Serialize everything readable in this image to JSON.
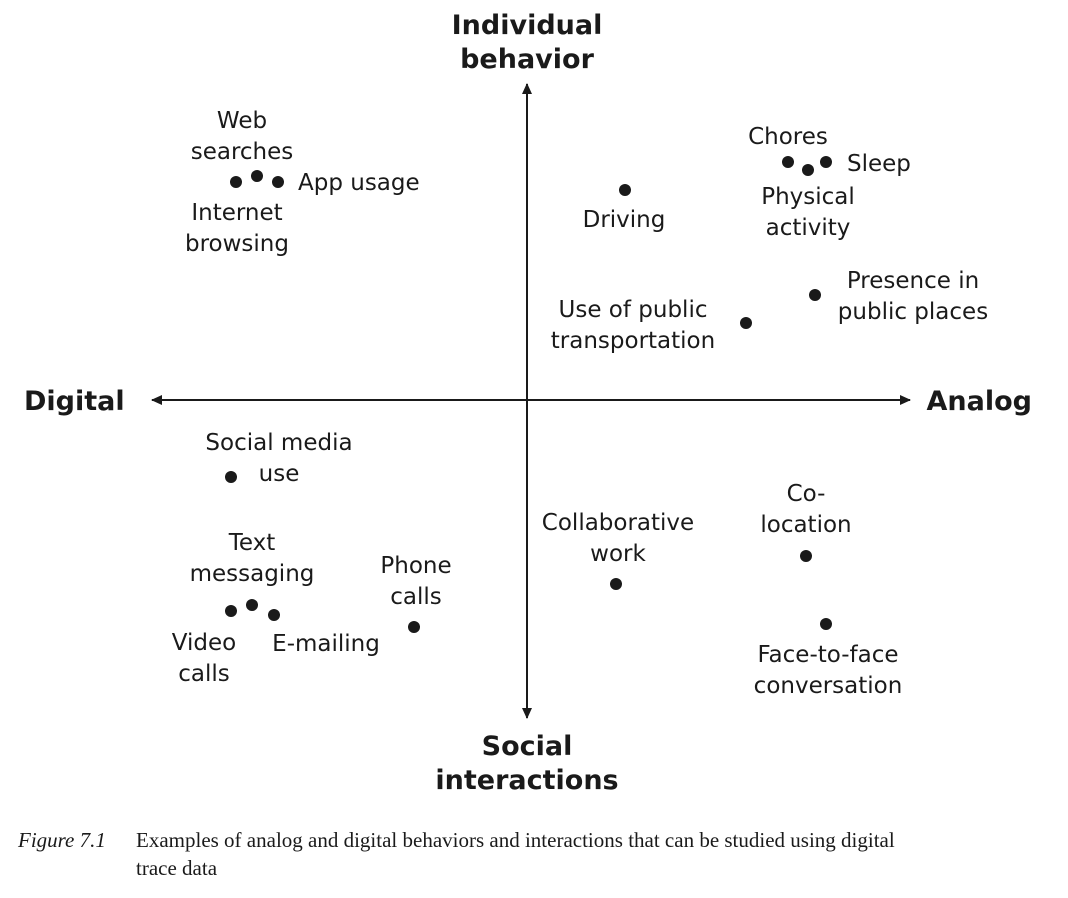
{
  "axes": {
    "top": [
      "Individual",
      "behavior"
    ],
    "bottom": [
      "Social",
      "interactions"
    ],
    "left": "Digital",
    "right": "Analog"
  },
  "items": [
    {
      "name": "web-searches",
      "label": [
        "Web",
        "searches"
      ]
    },
    {
      "name": "app-usage",
      "label": [
        "App usage"
      ]
    },
    {
      "name": "internet-browsing",
      "label": [
        "Internet",
        "browsing"
      ]
    },
    {
      "name": "driving",
      "label": [
        "Driving"
      ]
    },
    {
      "name": "chores",
      "label": [
        "Chores"
      ]
    },
    {
      "name": "sleep",
      "label": [
        "Sleep"
      ]
    },
    {
      "name": "physical-activity",
      "label": [
        "Physical",
        "activity"
      ]
    },
    {
      "name": "presence-in-public-places",
      "label": [
        "Presence in",
        "public places"
      ]
    },
    {
      "name": "use-of-public-transportation",
      "label": [
        "Use of public",
        "transportation"
      ]
    },
    {
      "name": "social-media-use",
      "label": [
        "Social media",
        "use"
      ]
    },
    {
      "name": "text-messaging",
      "label": [
        "Text",
        "messaging"
      ]
    },
    {
      "name": "video-calls",
      "label": [
        "Video",
        "calls"
      ]
    },
    {
      "name": "e-mailing",
      "label": [
        "E-mailing"
      ]
    },
    {
      "name": "phone-calls",
      "label": [
        "Phone",
        "calls"
      ]
    },
    {
      "name": "collaborative-work",
      "label": [
        "Collaborative",
        "work"
      ]
    },
    {
      "name": "co-location",
      "label": [
        "Co-",
        "location"
      ]
    },
    {
      "name": "face-to-face-conversation",
      "label": [
        "Face-to-face",
        "conversation"
      ]
    }
  ],
  "caption": {
    "figure": "Figure 7.1",
    "line1": "Examples of analog and digital behaviors and interactions that can be studied using digital",
    "line2": "trace data"
  }
}
